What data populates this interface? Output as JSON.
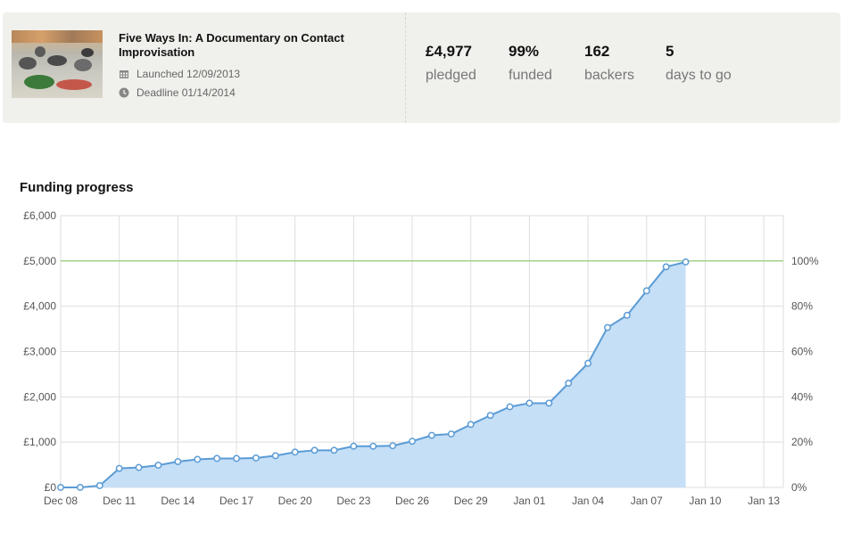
{
  "project": {
    "title": "Five Ways In: A Documentary on Contact Improvisation",
    "launched": "Launched 12/09/2013",
    "deadline": "Deadline 01/14/2014",
    "thumbnail_icon": "dance-class-photo"
  },
  "stats": [
    {
      "value": "£4,977",
      "label": "pledged"
    },
    {
      "value": "99%",
      "label": "funded"
    },
    {
      "value": "162",
      "label": "backers"
    },
    {
      "value": "5",
      "label": "days to go"
    }
  ],
  "colors": {
    "card_bg": "#f0f1ec",
    "line": "#5b9bd5",
    "area": "#c5dff7",
    "goal": "#8cc56d",
    "grid": "#dedede"
  },
  "chart_data": {
    "type": "area",
    "title": "Funding progress",
    "x_ticks": [
      "Dec 08",
      "Dec 11",
      "Dec 14",
      "Dec 17",
      "Dec 20",
      "Dec 23",
      "Dec 26",
      "Dec 29",
      "Jan 01",
      "Jan 04",
      "Jan 07",
      "Jan 10",
      "Jan 13"
    ],
    "x_range": [
      "2013-12-08",
      "2014-01-14"
    ],
    "y_left_ticks": [
      "£0",
      "£1,000",
      "£2,000",
      "£3,000",
      "£4,000",
      "£5,000",
      "£6,000"
    ],
    "y_right_ticks": [
      "0%",
      "20%",
      "40%",
      "60%",
      "80%",
      "100%"
    ],
    "ylim": [
      0,
      6000
    ],
    "goal": 5000,
    "grid": true,
    "series": [
      {
        "dates": [
          "2013-12-08",
          "2013-12-09",
          "2013-12-10",
          "2013-12-11",
          "2013-12-12",
          "2013-12-13",
          "2013-12-14",
          "2013-12-15",
          "2013-12-16",
          "2013-12-17",
          "2013-12-18",
          "2013-12-19",
          "2013-12-20",
          "2013-12-21",
          "2013-12-22",
          "2013-12-23",
          "2013-12-24",
          "2013-12-25",
          "2013-12-26",
          "2013-12-27",
          "2013-12-28",
          "2013-12-29",
          "2013-12-30",
          "2013-12-31",
          "2014-01-01",
          "2014-01-02",
          "2014-01-03",
          "2014-01-04",
          "2014-01-05",
          "2014-01-06",
          "2014-01-07",
          "2014-01-08",
          "2014-01-09"
        ],
        "values": [
          0,
          0,
          40,
          420,
          440,
          490,
          570,
          620,
          640,
          640,
          650,
          700,
          780,
          820,
          820,
          910,
          910,
          920,
          1020,
          1150,
          1180,
          1390,
          1590,
          1780,
          1860,
          1860,
          2300,
          2740,
          3530,
          3800,
          4340,
          4870,
          4977
        ]
      }
    ]
  }
}
